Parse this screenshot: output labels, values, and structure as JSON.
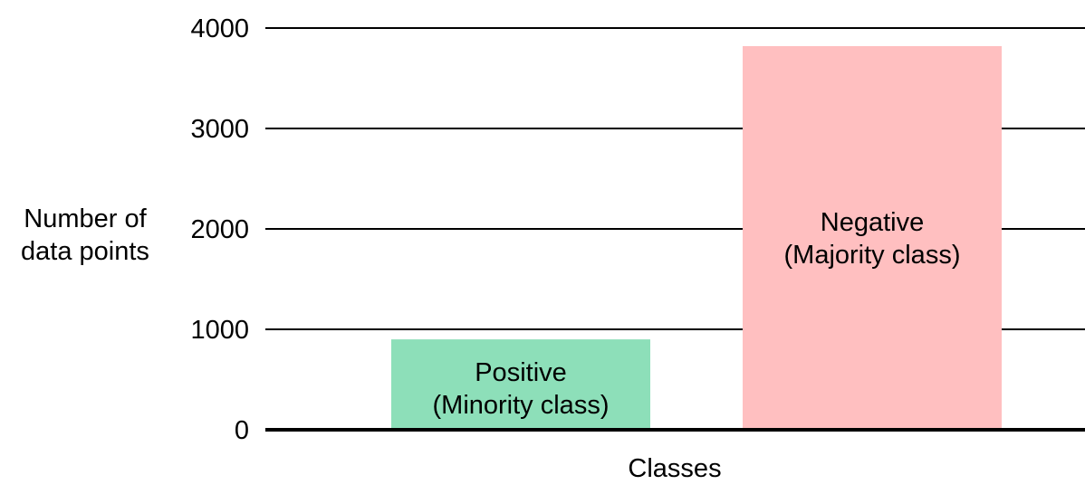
{
  "chart_data": {
    "type": "bar",
    "categories": [
      "Positive\n(Minority class)",
      "Negative\n(Majority class)"
    ],
    "values": [
      900,
      3820
    ],
    "colors": [
      "#8ddfb9",
      "#ffbfc0"
    ],
    "yticks": [
      0,
      1000,
      2000,
      3000,
      4000
    ],
    "ylim": [
      0,
      4000
    ],
    "xlabel": "Classes",
    "ylabel": "Number of\ndata points",
    "grid": true,
    "legend": "none"
  }
}
